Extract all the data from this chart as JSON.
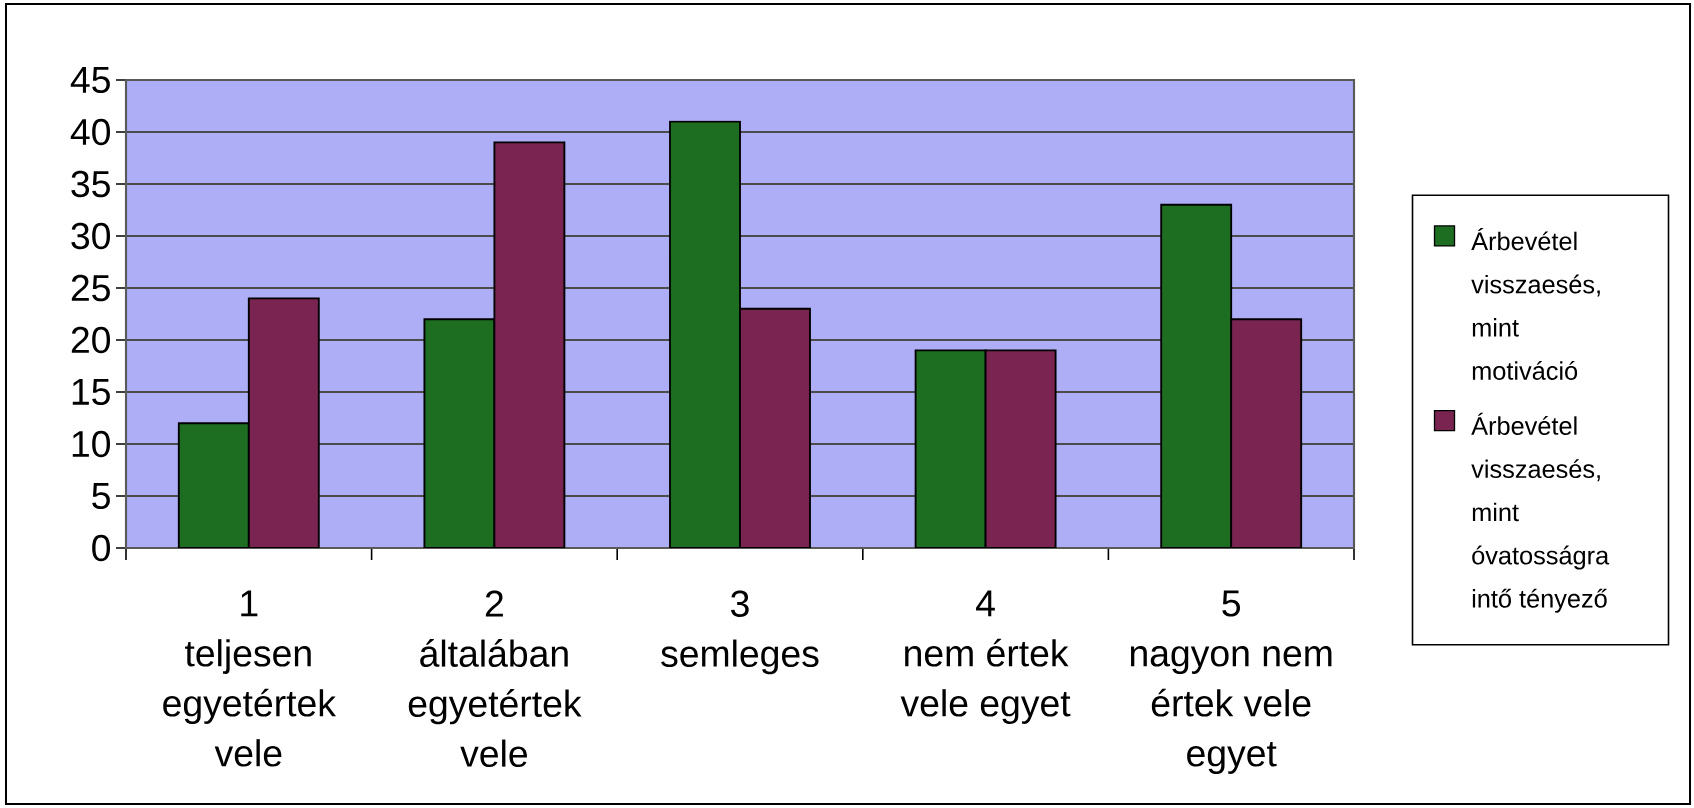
{
  "chart_data": {
    "type": "bar",
    "categories": [
      "1\nteljesen egyetértek vele",
      "2\náltalában egyetértek vele",
      "3\nsemleges",
      "4\nnem értek vele egyet",
      "5\nnagyon nem értek vele egyet"
    ],
    "series": [
      {
        "name": "Árbevétel visszaesés, mint motiváció",
        "color": "#1e6e22",
        "values": [
          12,
          22,
          41,
          19,
          33
        ]
      },
      {
        "name": "Árbevétel visszaesés, mint óvatosságra intő tényező",
        "color": "#7a2452",
        "values": [
          24,
          39,
          23,
          19,
          22
        ]
      }
    ],
    "ylim": [
      0,
      45
    ],
    "yticks": [
      0,
      5,
      10,
      15,
      20,
      25,
      30,
      35,
      40,
      45
    ],
    "grid": "y",
    "legend": "right"
  }
}
